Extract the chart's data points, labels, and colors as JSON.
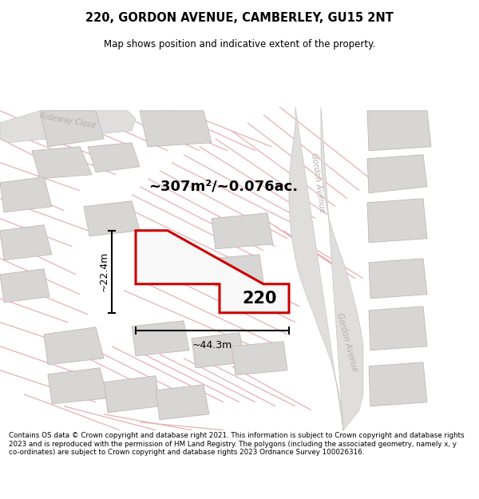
{
  "title_line1": "220, GORDON AVENUE, CAMBERLEY, GU15 2NT",
  "title_line2": "Map shows position and indicative extent of the property.",
  "area_label": "~307m²/~0.076ac.",
  "width_label": "~44.3m",
  "height_label": "~22.4m",
  "property_number": "220",
  "footer_text": "Contains OS data © Crown copyright and database right 2021. This information is subject to Crown copyright and database rights 2023 and is reproduced with the permission of HM Land Registry. The polygons (including the associated geometry, namely x, y co-ordinates) are subject to Crown copyright and database rights 2023 Ordnance Survey 100026316.",
  "bg_color": "#ffffff",
  "map_bg_color": "#ffffff",
  "property_fill": "#ffffff",
  "property_edge": "#cc0000",
  "building_fill": "#d8d6d4",
  "building_edge": "#c0b8b4",
  "road_fill": "#e8e6e4",
  "pink_line": "#e8b0b0",
  "road_label_color": "#b0b0b0",
  "text_color": "#000000",
  "dim_color": "#000000"
}
